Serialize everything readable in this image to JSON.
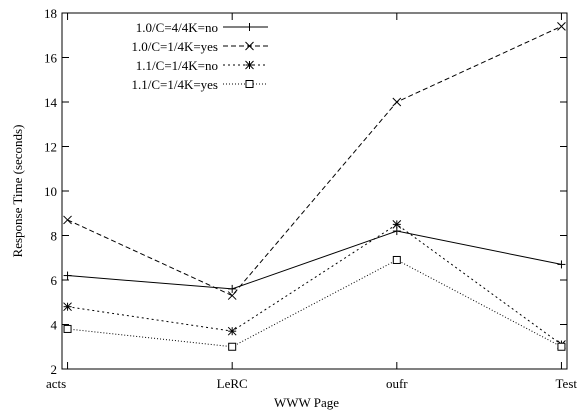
{
  "chart_data": {
    "type": "line",
    "title": "",
    "xlabel": "WWW Page",
    "ylabel": "Response Time (seconds)",
    "categories": [
      "acts",
      "LeRC",
      "oufr",
      "Test"
    ],
    "ylim": [
      2,
      18
    ],
    "yticks": [
      2,
      4,
      6,
      8,
      10,
      12,
      14,
      16,
      18
    ],
    "grid": false,
    "legend_position": "top-left",
    "series": [
      {
        "name": "1.0/C=4/4K=no",
        "values": [
          6.2,
          5.6,
          8.2,
          6.7
        ],
        "style": "solid",
        "marker": "plus"
      },
      {
        "name": "1.0/C=1/4K=yes",
        "values": [
          8.7,
          5.3,
          14.0,
          17.4
        ],
        "style": "dashed",
        "marker": "x"
      },
      {
        "name": "1.1/C=1/4K=no",
        "values": [
          4.8,
          3.7,
          8.5,
          3.1
        ],
        "style": "dotted",
        "marker": "star"
      },
      {
        "name": "1.1/C=1/4K=yes",
        "values": [
          3.8,
          3.0,
          6.9,
          3.0
        ],
        "style": "finedotted",
        "marker": "square"
      }
    ]
  }
}
